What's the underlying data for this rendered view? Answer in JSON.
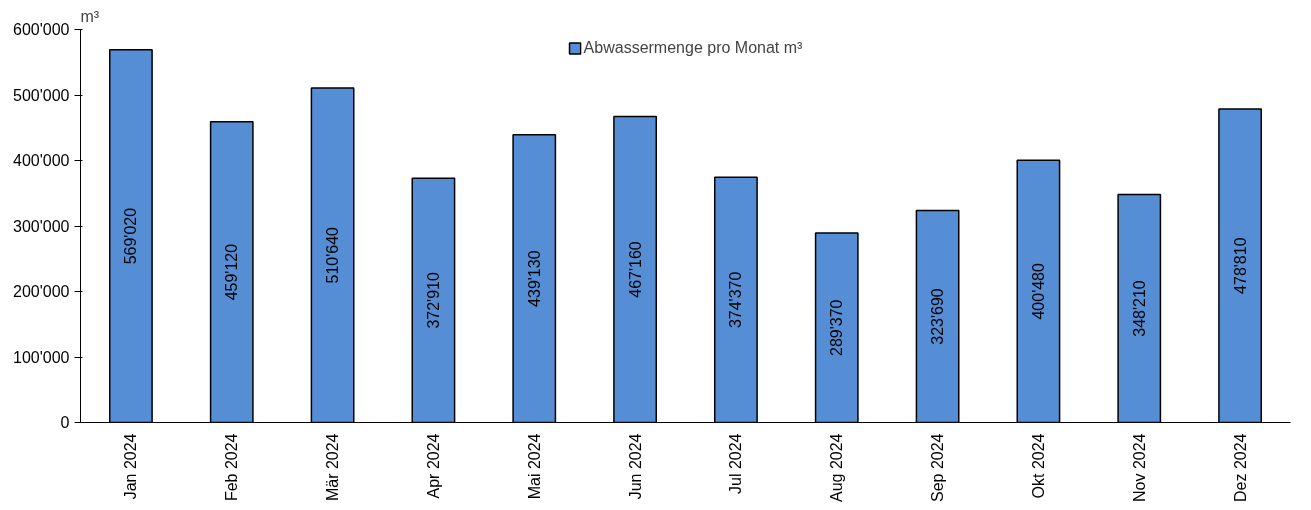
{
  "chart_data": {
    "type": "bar",
    "ylabel": "m³",
    "categories": [
      "Jan 2024",
      "Feb 2024",
      "Mär 2024",
      "Apr 2024",
      "Mai 2024",
      "Jun 2024",
      "Jul 2024",
      "Aug 2024",
      "Sep 2024",
      "Okt 2024",
      "Nov 2024",
      "Dez 2024"
    ],
    "series": [
      {
        "name": "Abwassermenge pro Monat m³",
        "color": "#558ed5",
        "values": [
          569020,
          459120,
          510640,
          372910,
          439130,
          467160,
          374370,
          289370,
          323690,
          400480,
          348210,
          478810
        ],
        "value_labels": [
          "569'020",
          "459'120",
          "510'640",
          "372'910",
          "439'130",
          "467'160",
          "374'370",
          "289'370",
          "323'690",
          "400'480",
          "348'210",
          "478'810"
        ]
      }
    ],
    "ylim": [
      0,
      600000
    ],
    "yticks": [
      {
        "value": 0,
        "label": "0"
      },
      {
        "value": 100000,
        "label": "100'000"
      },
      {
        "value": 200000,
        "label": "200'000"
      },
      {
        "value": 300000,
        "label": "300'000"
      },
      {
        "value": 400000,
        "label": "400'000"
      },
      {
        "value": 500000,
        "label": "500'000"
      },
      {
        "value": 600000,
        "label": "600'000"
      }
    ],
    "grid": false,
    "legend": "top"
  }
}
